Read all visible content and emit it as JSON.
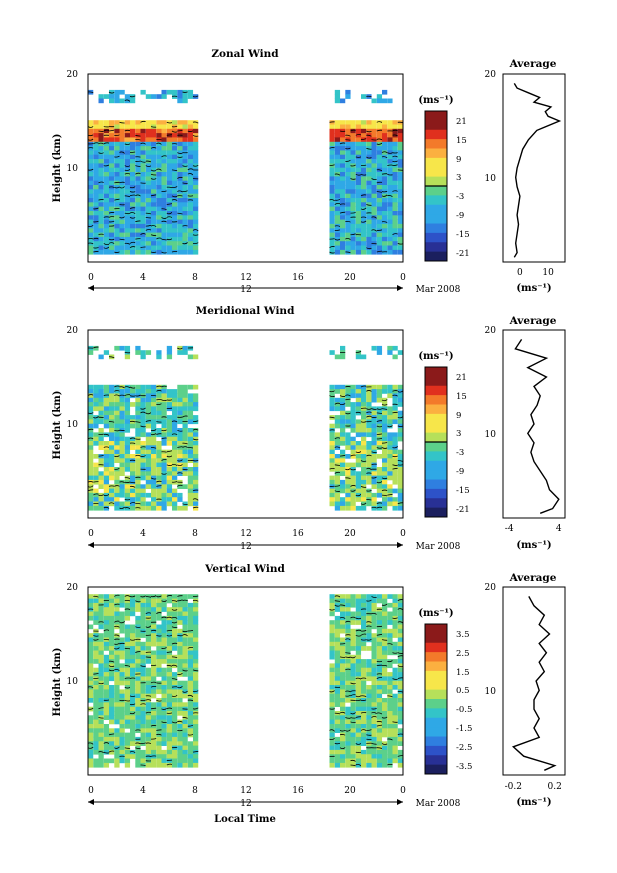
{
  "figure": {
    "xlabel": "Local Time",
    "date_label": "Mar 2008",
    "day_marker": "12",
    "ylabel": "Height (km)",
    "x_ticks": [
      "0",
      "4",
      "8",
      "12",
      "16",
      "20",
      "0"
    ],
    "y_ticks": [
      "10",
      "20"
    ],
    "profile_xlabel": "(ms⁻¹)",
    "profile_title": "Average",
    "colorbar_unit": "(ms⁻¹)"
  },
  "chart_data": [
    {
      "type": "heatmap",
      "title": "Zonal Wind",
      "xlabel": "Local Time",
      "ylabel": "Height (km)",
      "xlim": [
        0,
        24
      ],
      "ylim": [
        0,
        20
      ],
      "data_time_ranges": [
        [
          0,
          8.4
        ],
        [
          18.4,
          24
        ]
      ],
      "colorbar_ticks": [
        "21",
        "15",
        "9",
        "3",
        "-3",
        "-9",
        "-15",
        "-21"
      ],
      "colorbar_range": [
        -24,
        24
      ],
      "profile": {
        "title": "Average",
        "xlim": [
          -6,
          16
        ],
        "x_ticks": [
          "0",
          "10"
        ],
        "x_tick_values": [
          0,
          10
        ],
        "heights_km": [
          0.5,
          1,
          2,
          3,
          4,
          5,
          6,
          7,
          8,
          9,
          10,
          11,
          12,
          13,
          14,
          15,
          15.5,
          16,
          16.5,
          17,
          17.5,
          18,
          18.5,
          19
        ],
        "values": [
          -2,
          -1,
          -1.5,
          -1,
          -0.5,
          -1,
          -0.5,
          0,
          -1,
          -1.5,
          -1,
          0,
          1,
          3,
          6,
          14,
          10,
          9,
          11,
          5,
          7,
          3,
          -1,
          -2
        ]
      }
    },
    {
      "type": "heatmap",
      "title": "Meridional Wind",
      "xlabel": "Local Time",
      "ylabel": "Height (km)",
      "xlim": [
        0,
        24
      ],
      "ylim": [
        0,
        20
      ],
      "data_time_ranges": [
        [
          0,
          8.4
        ],
        [
          18.4,
          24
        ]
      ],
      "colorbar_ticks": [
        "21",
        "15",
        "9",
        "3",
        "-3",
        "-9",
        "-15",
        "-21"
      ],
      "colorbar_range": [
        -24,
        24
      ],
      "profile": {
        "title": "Average",
        "xlim": [
          -5,
          5
        ],
        "x_ticks": [
          "-4",
          "4"
        ],
        "x_tick_values": [
          -4,
          4
        ],
        "heights_km": [
          0.5,
          1,
          2,
          3,
          4,
          5,
          6,
          7,
          8,
          9,
          10,
          11,
          12,
          13,
          14,
          15,
          16,
          17,
          18,
          19
        ],
        "values": [
          1,
          3,
          4,
          2.5,
          2,
          1,
          0,
          -0.5,
          0,
          -1,
          0,
          -0.5,
          0.5,
          1,
          0,
          2,
          -1,
          2,
          -3,
          -2
        ]
      }
    },
    {
      "type": "heatmap",
      "title": "Vertical Wind",
      "xlabel": "Local Time",
      "ylabel": "Height (km)",
      "xlim": [
        0,
        24
      ],
      "ylim": [
        0,
        20
      ],
      "data_time_ranges": [
        [
          0,
          8.4
        ],
        [
          18.4,
          24
        ]
      ],
      "colorbar_ticks": [
        "3.5",
        "2.5",
        "1.5",
        "0.5",
        "-0.5",
        "-1.5",
        "-2.5",
        "-3.5"
      ],
      "colorbar_range": [
        -4,
        4
      ],
      "profile": {
        "title": "Average",
        "xlim": [
          -0.3,
          0.3
        ],
        "x_ticks": [
          "-0.2",
          "0.2"
        ],
        "x_tick_values": [
          -0.2,
          0.2
        ],
        "heights_km": [
          0.5,
          1,
          2,
          3,
          4,
          5,
          6,
          7,
          8,
          9,
          10,
          11,
          12,
          13,
          14,
          15,
          16,
          17,
          18,
          19
        ],
        "values": [
          0.1,
          0.2,
          -0.1,
          -0.2,
          0.05,
          0.0,
          0.05,
          0.0,
          0.0,
          0.05,
          0.02,
          0.1,
          0.05,
          0.12,
          0.05,
          0.15,
          0.05,
          0.1,
          0.0,
          -0.05
        ]
      }
    }
  ]
}
